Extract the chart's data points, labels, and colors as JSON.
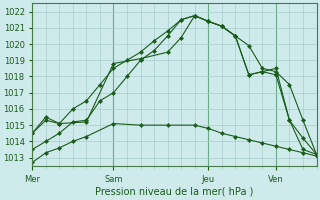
{
  "background_color": "#ceeaea",
  "grid_color": "#aacccc",
  "line_color": "#1a5c1a",
  "xlabel": "Pression niveau de la mer( hPa )",
  "ylim": [
    1012.5,
    1022.5
  ],
  "yticks": [
    1013,
    1014,
    1015,
    1016,
    1017,
    1018,
    1019,
    1020,
    1021,
    1022
  ],
  "xtick_labels": [
    "Mer",
    "Sam",
    "Jeu",
    "Ven"
  ],
  "xtick_positions": [
    0,
    3.0,
    6.5,
    9.0
  ],
  "xlim": [
    0,
    10.5
  ],
  "series_data": [
    {
      "x": [
        0,
        0.5,
        1.0,
        1.5,
        2.0,
        3.0,
        4.0,
        5.0,
        6.0,
        6.5,
        7.0,
        7.5,
        8.0,
        8.5,
        9.0,
        9.5,
        10.0,
        10.5
      ],
      "y": [
        1012.7,
        1013.3,
        1013.6,
        1014.0,
        1014.3,
        1015.1,
        1015.0,
        1015.0,
        1015.0,
        1014.8,
        1014.5,
        1014.3,
        1014.1,
        1013.9,
        1013.7,
        1013.5,
        1013.3,
        1013.1
      ]
    },
    {
      "x": [
        0,
        0.5,
        1.0,
        1.5,
        2.0,
        2.5,
        3.0,
        3.5,
        4.0,
        4.5,
        5.0,
        5.5,
        6.0,
        6.5,
        7.0,
        7.5,
        8.0,
        8.5,
        9.0,
        9.5,
        10.0,
        10.5
      ],
      "y": [
        1013.5,
        1014.0,
        1014.5,
        1015.2,
        1015.3,
        1016.5,
        1017.0,
        1018.0,
        1019.0,
        1019.6,
        1020.5,
        1021.5,
        1021.75,
        1021.4,
        1021.1,
        1020.5,
        1018.1,
        1018.3,
        1018.1,
        1015.3,
        1014.2,
        1013.2
      ]
    },
    {
      "x": [
        0,
        0.5,
        1.0,
        1.5,
        2.0,
        2.5,
        3.0,
        3.5,
        4.0,
        4.5,
        5.0,
        5.5,
        6.0,
        6.5,
        7.0,
        7.5,
        8.0,
        8.5,
        9.0,
        9.5,
        10.0,
        10.5
      ],
      "y": [
        1014.5,
        1015.3,
        1015.1,
        1016.0,
        1016.5,
        1017.5,
        1018.5,
        1019.0,
        1019.5,
        1020.2,
        1020.8,
        1021.5,
        1021.75,
        1021.4,
        1021.1,
        1020.5,
        1019.9,
        1018.5,
        1018.3,
        1017.5,
        1015.3,
        1013.2
      ]
    },
    {
      "x": [
        0,
        0.5,
        1.0,
        2.0,
        3.0,
        4.0,
        5.0,
        5.5,
        6.0,
        6.5,
        7.0,
        7.5,
        8.0,
        8.5,
        9.0,
        9.5,
        10.0,
        10.5
      ],
      "y": [
        1014.5,
        1015.5,
        1015.1,
        1015.2,
        1018.8,
        1019.1,
        1019.5,
        1020.4,
        1021.75,
        1021.4,
        1021.1,
        1020.5,
        1018.1,
        1018.3,
        1018.5,
        1015.3,
        1013.5,
        1013.2
      ]
    }
  ]
}
